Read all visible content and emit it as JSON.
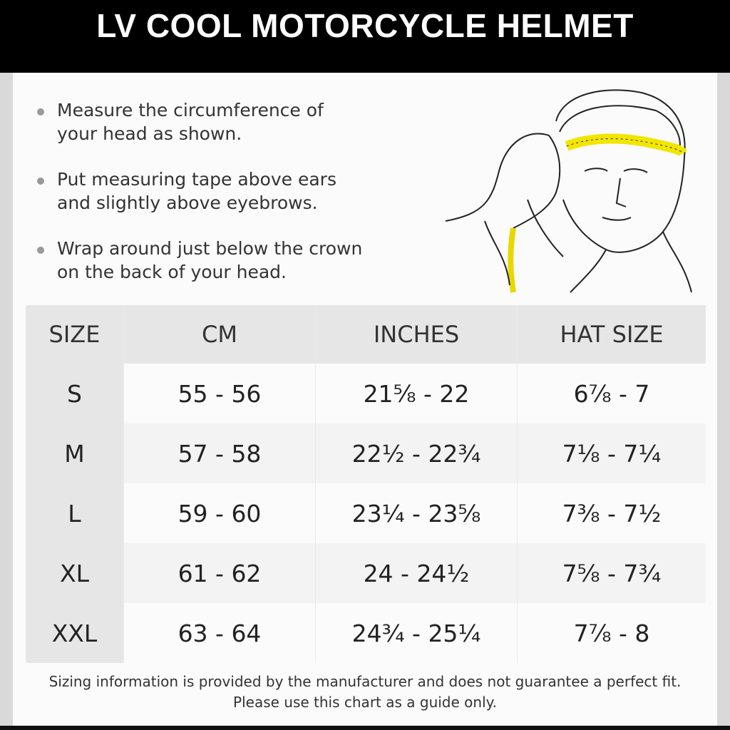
{
  "title": "LV COOL MOTORCYCLE HELMET",
  "instructions": [
    {
      "line1": "Measure the circumference of",
      "line2": "your head as shown."
    },
    {
      "line1": "Put measuring tape above ears",
      "line2": "and slightly above eyebrows."
    },
    {
      "line1": "Wrap around just below the crown",
      "line2": "on the back of your head."
    }
  ],
  "illustration_icon": "head-measuring-tape-illustration",
  "colors": {
    "tape": "#f2e600",
    "header": "#000000"
  },
  "table": {
    "headers": [
      "SIZE",
      "CM",
      "INCHES",
      "HAT SIZE"
    ],
    "rows": [
      [
        "S",
        "55 - 56",
        "21⅝ - 22",
        "6⅞ - 7"
      ],
      [
        "M",
        "57 - 58",
        "22½ - 22¾",
        "7⅛  - 7¼"
      ],
      [
        "L",
        "59 - 60",
        "23¼ - 23⅝",
        "7⅜ - 7½"
      ],
      [
        "XL",
        "61 - 62",
        "24 - 24½",
        "7⅝ - 7¾"
      ],
      [
        "XXL",
        "63 - 64",
        "24¾ - 25¼",
        "7⅞ - 8"
      ]
    ]
  },
  "disclaimer": {
    "line1": "Sizing information is provided by the manufacturer and does not guarantee a perfect fit.",
    "line2": "Please use this chart as a guide only."
  }
}
